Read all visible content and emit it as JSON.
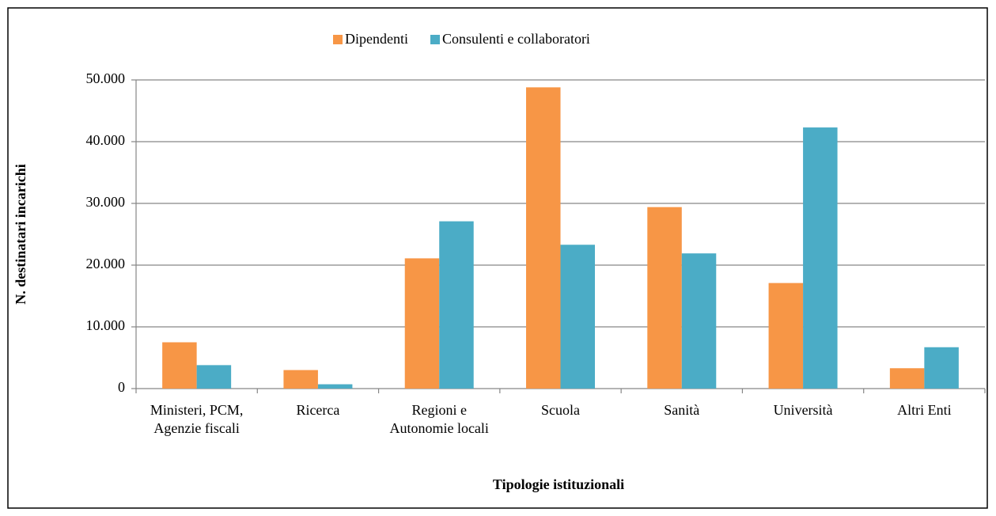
{
  "chart_data": {
    "type": "bar",
    "x_label": "Tipologie istituzionali",
    "y_label": "N. destinatari incarichi",
    "categories": [
      "Ministeri, PCM, Agenzie fiscali",
      "Ricerca",
      "Regioni e Autonomie locali",
      "Scuola",
      "Sanità",
      "Università",
      "Altri Enti"
    ],
    "series": [
      {
        "name": "Dipendenti",
        "color": "#f79646",
        "values": [
          7500,
          3000,
          21100,
          48800,
          29400,
          17100,
          3300
        ]
      },
      {
        "name": "Consulenti e collaboratori",
        "color": "#4bacc6",
        "values": [
          3800,
          700,
          27100,
          23300,
          21900,
          42300,
          6700
        ]
      }
    ],
    "ylim": [
      0,
      50000
    ],
    "yticks": [
      0,
      {
        "value": 10000,
        "label": "10.000"
      },
      {
        "value": 20000,
        "label": "20.000"
      },
      {
        "value": 30000,
        "label": "30.000"
      },
      {
        "value": 40000,
        "label": "40.000"
      },
      {
        "value": 50000,
        "label": "50.000"
      }
    ],
    "grid": true,
    "legend": "top"
  }
}
